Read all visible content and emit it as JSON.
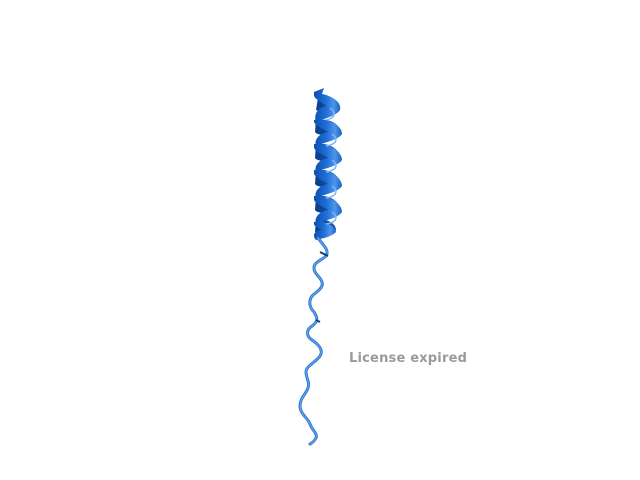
{
  "viewer": {
    "watermark_text": "License expired"
  },
  "colors": {
    "background": "#ffffff",
    "helix_main": "#1f6fd6",
    "helix_dark": "#0c4fae",
    "helix_light": "#5aa0f0",
    "coil": "#3f86d8",
    "watermark": "#9a9a9a"
  },
  "structure": {
    "representation": "cartoon",
    "elements": [
      "helix",
      "coil"
    ]
  }
}
